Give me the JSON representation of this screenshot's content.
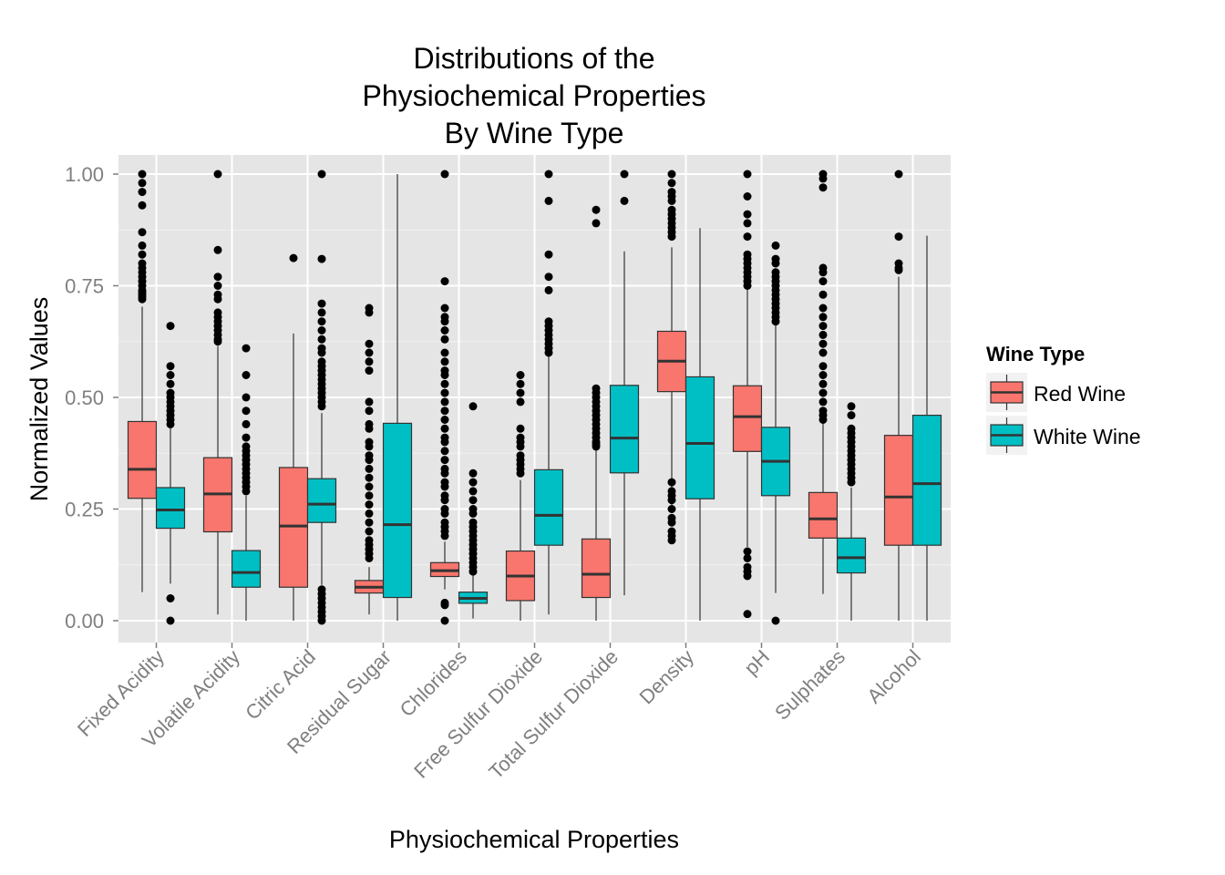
{
  "chart_data": {
    "type": "boxplot",
    "title": [
      "Distributions of the",
      "Physiochemical Properties",
      "By Wine Type"
    ],
    "xlabel": "Physiochemical Properties",
    "ylabel": "Normalized Values",
    "ylim": [
      -0.05,
      1.05
    ],
    "yticks": [
      0.0,
      0.25,
      0.5,
      0.75,
      1.0
    ],
    "ytick_labels": [
      "0.00",
      "0.25",
      "0.50",
      "0.75",
      "1.00"
    ],
    "grid": true,
    "legend": {
      "title": "Wine Type",
      "position": "right"
    },
    "categories": [
      "Fixed Acidity",
      "Volatile Acidity",
      "Citric Acid",
      "Residual Sugar",
      "Chlorides",
      "Free Sulfur Dioxide",
      "Total Sulfur Dioxide",
      "Density",
      "pH",
      "Sulphates",
      "Alcohol"
    ],
    "series": [
      {
        "name": "Red Wine",
        "color": "#F8766D",
        "boxes": [
          {
            "whislo": 0.064,
            "q1": 0.274,
            "med": 0.339,
            "q3": 0.446,
            "whishi": 0.703,
            "fliers": [
              1.0,
              0.98,
              0.96,
              0.93,
              0.87,
              0.84,
              0.82,
              0.8,
              0.79,
              0.78,
              0.77,
              0.76,
              0.75,
              0.74,
              0.735,
              0.73,
              0.725,
              0.72
            ]
          },
          {
            "whislo": 0.014,
            "q1": 0.199,
            "med": 0.284,
            "q3": 0.365,
            "whishi": 0.615,
            "fliers": [
              1.0,
              0.83,
              0.77,
              0.75,
              0.73,
              0.72,
              0.69,
              0.68,
              0.67,
              0.66,
              0.65,
              0.64,
              0.63,
              0.625
            ]
          },
          {
            "whislo": 0.0,
            "q1": 0.075,
            "med": 0.212,
            "q3": 0.343,
            "whishi": 0.643,
            "fliers": [
              0.812
            ]
          },
          {
            "whislo": 0.014,
            "q1": 0.062,
            "med": 0.075,
            "q3": 0.09,
            "whishi": 0.12,
            "fliers": [
              0.7,
              0.69,
              0.62,
              0.6,
              0.58,
              0.56,
              0.49,
              0.47,
              0.44,
              0.43,
              0.4,
              0.39,
              0.37,
              0.36,
              0.34,
              0.32,
              0.3,
              0.28,
              0.26,
              0.24,
              0.22,
              0.2,
              0.18,
              0.17,
              0.16,
              0.15,
              0.14
            ]
          },
          {
            "whislo": 0.07,
            "q1": 0.099,
            "med": 0.112,
            "q3": 0.13,
            "whishi": 0.177,
            "fliers": [
              1.0,
              0.76,
              0.7,
              0.68,
              0.67,
              0.65,
              0.63,
              0.6,
              0.58,
              0.56,
              0.55,
              0.53,
              0.51,
              0.49,
              0.47,
              0.45,
              0.43,
              0.41,
              0.4,
              0.38,
              0.36,
              0.34,
              0.33,
              0.31,
              0.3,
              0.28,
              0.27,
              0.25,
              0.24,
              0.22,
              0.21,
              0.2,
              0.19,
              0.04,
              0.035,
              0.0
            ]
          },
          {
            "whislo": 0.0,
            "q1": 0.045,
            "med": 0.1,
            "q3": 0.156,
            "whishi": 0.315,
            "fliers": [
              0.55,
              0.53,
              0.51,
              0.49,
              0.43,
              0.41,
              0.4,
              0.39,
              0.37,
              0.36,
              0.35,
              0.34,
              0.33
            ]
          },
          {
            "whislo": 0.0,
            "q1": 0.052,
            "med": 0.104,
            "q3": 0.183,
            "whishi": 0.383,
            "fliers": [
              0.92,
              0.89,
              0.52,
              0.51,
              0.5,
              0.49,
              0.48,
              0.47,
              0.46,
              0.45,
              0.44,
              0.43,
              0.42,
              0.41,
              0.4,
              0.395,
              0.39
            ]
          },
          {
            "whislo": 0.242,
            "q1": 0.513,
            "med": 0.581,
            "q3": 0.648,
            "whishi": 0.836,
            "fliers": [
              1.0,
              0.98,
              0.96,
              0.95,
              0.94,
              0.92,
              0.91,
              0.9,
              0.89,
              0.88,
              0.87,
              0.86,
              0.31,
              0.29,
              0.28,
              0.27,
              0.25,
              0.23,
              0.22,
              0.2,
              0.19,
              0.18
            ]
          },
          {
            "whislo": 0.165,
            "q1": 0.379,
            "med": 0.457,
            "q3": 0.526,
            "whishi": 0.741,
            "fliers": [
              1.0,
              0.95,
              0.91,
              0.89,
              0.86,
              0.82,
              0.81,
              0.8,
              0.79,
              0.78,
              0.77,
              0.76,
              0.75,
              0.155,
              0.14,
              0.12,
              0.11,
              0.1,
              0.015
            ]
          },
          {
            "whislo": 0.06,
            "q1": 0.185,
            "med": 0.228,
            "q3": 0.287,
            "whishi": 0.45,
            "fliers": [
              1.0,
              0.99,
              0.97,
              0.79,
              0.78,
              0.76,
              0.73,
              0.7,
              0.68,
              0.66,
              0.64,
              0.62,
              0.6,
              0.57,
              0.55,
              0.53,
              0.51,
              0.49,
              0.47,
              0.46,
              0.45
            ]
          },
          {
            "whislo": 0.0,
            "q1": 0.169,
            "med": 0.277,
            "q3": 0.415,
            "whishi": 0.77,
            "fliers": [
              1.0,
              0.86,
              0.8,
              0.79,
              0.785
            ]
          }
        ]
      },
      {
        "name": "White Wine",
        "color": "#00BFC4",
        "boxes": [
          {
            "whislo": 0.083,
            "q1": 0.207,
            "med": 0.248,
            "q3": 0.298,
            "whishi": 0.435,
            "fliers": [
              0.66,
              0.57,
              0.55,
              0.53,
              0.51,
              0.5,
              0.49,
              0.48,
              0.47,
              0.46,
              0.45,
              0.44,
              0.05,
              0.0
            ]
          },
          {
            "whislo": 0.0,
            "q1": 0.075,
            "med": 0.108,
            "q3": 0.157,
            "whishi": 0.28,
            "fliers": [
              0.61,
              0.55,
              0.5,
              0.47,
              0.44,
              0.41,
              0.39,
              0.38,
              0.37,
              0.36,
              0.35,
              0.34,
              0.33,
              0.32,
              0.31,
              0.3,
              0.29
            ]
          },
          {
            "whislo": 0.08,
            "q1": 0.22,
            "med": 0.261,
            "q3": 0.318,
            "whishi": 0.465,
            "fliers": [
              1.0,
              0.81,
              0.71,
              0.69,
              0.67,
              0.65,
              0.63,
              0.61,
              0.6,
              0.58,
              0.57,
              0.56,
              0.55,
              0.54,
              0.53,
              0.52,
              0.51,
              0.5,
              0.49,
              0.48,
              0.07,
              0.06,
              0.05,
              0.04,
              0.03,
              0.02,
              0.01,
              0.0
            ]
          },
          {
            "whislo": 0.0,
            "q1": 0.052,
            "med": 0.215,
            "q3": 0.442,
            "whishi": 1.0,
            "fliers": []
          },
          {
            "whislo": 0.005,
            "q1": 0.039,
            "med": 0.05,
            "q3": 0.064,
            "whishi": 0.102,
            "fliers": [
              0.48,
              0.33,
              0.31,
              0.29,
              0.27,
              0.25,
              0.24,
              0.22,
              0.21,
              0.2,
              0.19,
              0.18,
              0.17,
              0.16,
              0.15,
              0.14,
              0.13,
              0.12,
              0.11
            ]
          },
          {
            "whislo": 0.014,
            "q1": 0.169,
            "med": 0.236,
            "q3": 0.338,
            "whishi": 0.598,
            "fliers": [
              1.0,
              0.94,
              0.82,
              0.77,
              0.74,
              0.67,
              0.66,
              0.65,
              0.64,
              0.63,
              0.62,
              0.61,
              0.6
            ]
          },
          {
            "whislo": 0.057,
            "q1": 0.331,
            "med": 0.409,
            "q3": 0.527,
            "whishi": 0.827,
            "fliers": [
              1.0,
              0.94
            ]
          },
          {
            "whislo": 0.0,
            "q1": 0.273,
            "med": 0.397,
            "q3": 0.546,
            "whishi": 0.879,
            "fliers": []
          },
          {
            "whislo": 0.062,
            "q1": 0.28,
            "med": 0.357,
            "q3": 0.433,
            "whishi": 0.665,
            "fliers": [
              0.84,
              0.81,
              0.8,
              0.78,
              0.77,
              0.76,
              0.75,
              0.74,
              0.73,
              0.72,
              0.71,
              0.7,
              0.69,
              0.68,
              0.67,
              0.0
            ]
          },
          {
            "whislo": 0.0,
            "q1": 0.107,
            "med": 0.141,
            "q3": 0.185,
            "whishi": 0.298,
            "fliers": [
              0.48,
              0.46,
              0.43,
              0.42,
              0.41,
              0.4,
              0.39,
              0.38,
              0.37,
              0.36,
              0.35,
              0.34,
              0.33,
              0.32,
              0.31
            ]
          },
          {
            "whislo": 0.0,
            "q1": 0.169,
            "med": 0.307,
            "q3": 0.46,
            "whishi": 0.862,
            "fliers": []
          }
        ]
      }
    ]
  }
}
